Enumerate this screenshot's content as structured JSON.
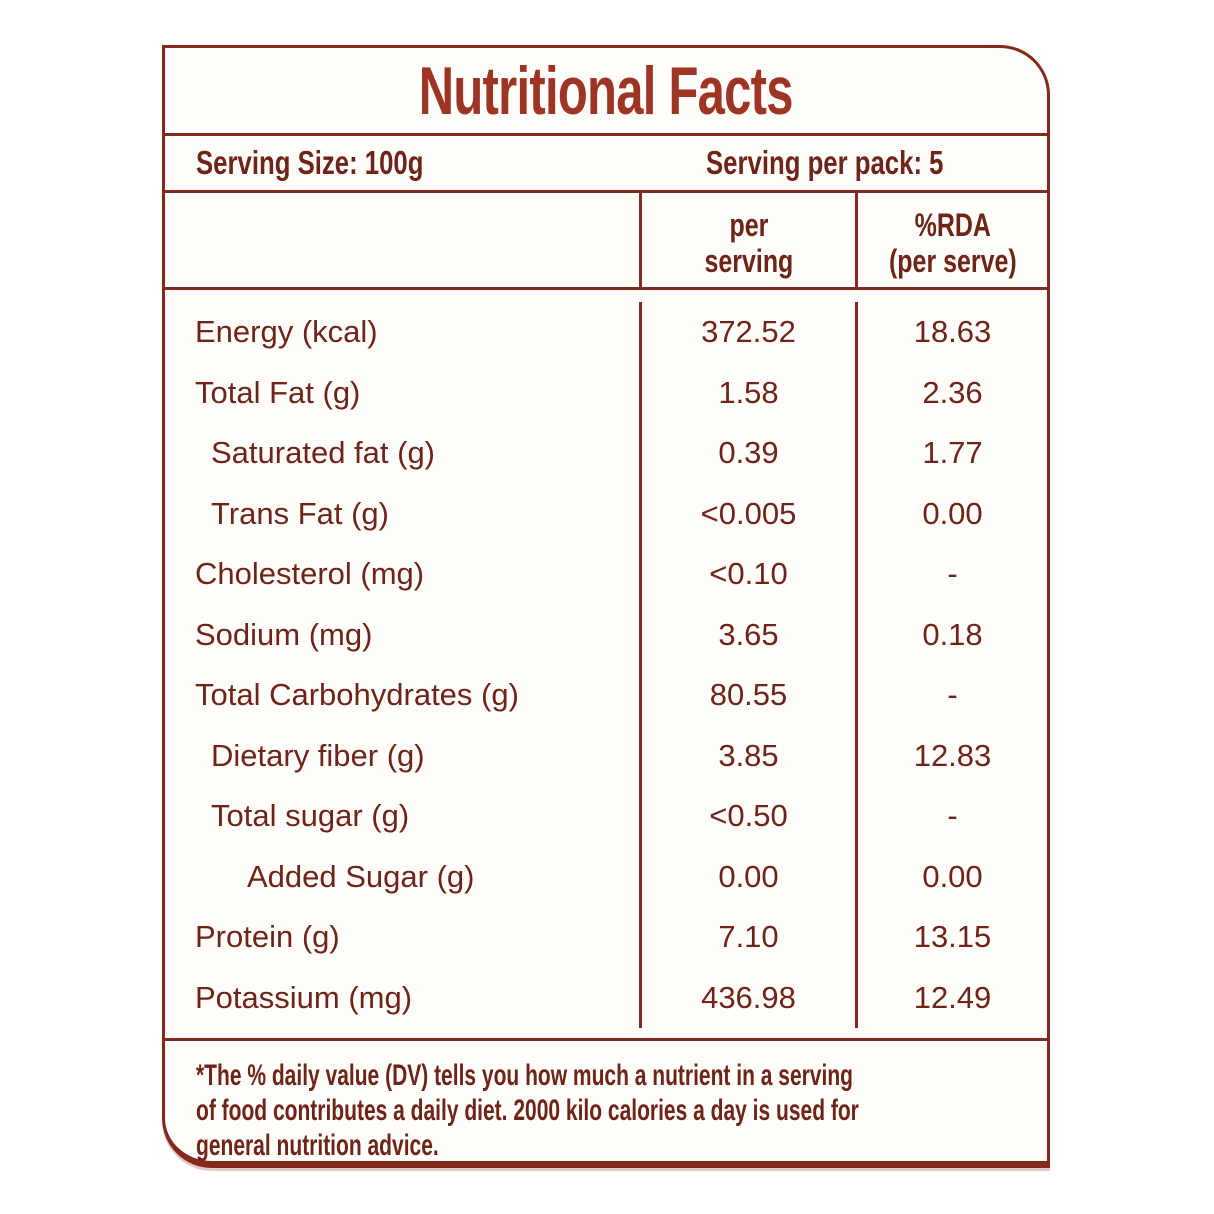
{
  "title": "Nutritional Facts",
  "serving": {
    "size": "Serving Size: 100g",
    "per_pack": "Serving per pack: 5"
  },
  "columns": {
    "per_serving": [
      "per",
      "serving"
    ],
    "rda": [
      "%RDA",
      "(per serve)"
    ]
  },
  "rows": [
    {
      "label": "Energy (kcal)",
      "indent": 0,
      "per_serving": "372.52",
      "rda": "18.63"
    },
    {
      "label": "Total Fat (g)",
      "indent": 0,
      "per_serving": "1.58",
      "rda": "2.36"
    },
    {
      "label": "Saturated fat (g)",
      "indent": 1,
      "per_serving": "0.39",
      "rda": "1.77"
    },
    {
      "label": "Trans Fat (g)",
      "indent": 1,
      "per_serving": "<0.005",
      "rda": "0.00"
    },
    {
      "label": "Cholesterol (mg)",
      "indent": 0,
      "per_serving": "<0.10",
      "rda": "-"
    },
    {
      "label": "Sodium (mg)",
      "indent": 0,
      "per_serving": "3.65",
      "rda": "0.18"
    },
    {
      "label": "Total Carbohydrates  (g)",
      "indent": 0,
      "per_serving": "80.55",
      "rda": "-"
    },
    {
      "label": "Dietary fiber (g)",
      "indent": 1,
      "per_serving": "3.85",
      "rda": "12.83"
    },
    {
      "label": "Total sugar (g)",
      "indent": 1,
      "per_serving": "<0.50",
      "rda": "-"
    },
    {
      "label": "Added Sugar (g)",
      "indent": 2,
      "per_serving": "0.00",
      "rda": "0.00"
    },
    {
      "label": "Protein (g)",
      "indent": 0,
      "per_serving": "7.10",
      "rda": "13.15"
    },
    {
      "label": "Potassium (mg)",
      "indent": 0,
      "per_serving": "436.98",
      "rda": "12.49"
    }
  ],
  "footnote_lines": [
    "*The % daily value (DV) tells you how much a nutrient in a serving",
    "of food contributes a daily diet. 2000 kilo calories a day is used for",
    "general nutrition advice."
  ],
  "colors": {
    "title_red": "#9e3424",
    "text_maroon": "#6e2418",
    "border_maroon": "#84291b",
    "background": "#fffefb"
  }
}
